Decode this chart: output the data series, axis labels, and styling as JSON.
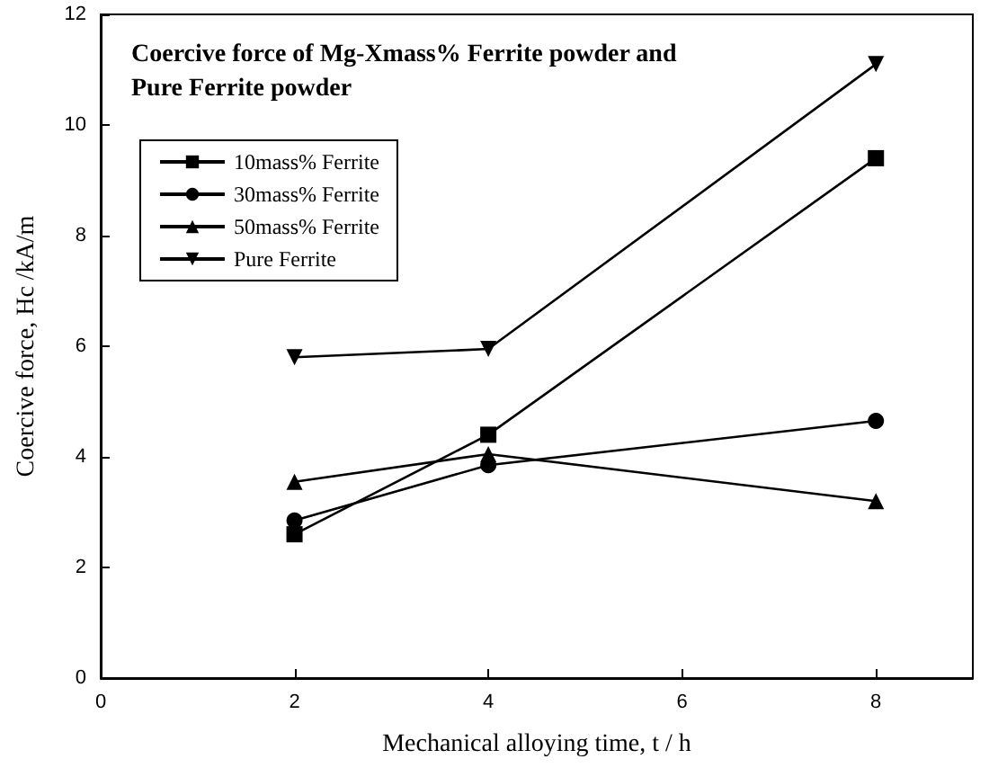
{
  "chart_data": {
    "type": "line",
    "title": "Coercive force of Mg-Xmass% Ferrite powder and Pure Ferrite powder",
    "xlabel": "Mechanical alloying time, t / h",
    "ylabel": "Coercive force, Hc /kA/m",
    "x": [
      2,
      4,
      8
    ],
    "series": [
      {
        "name": "10mass% Ferrite",
        "color": "#000000",
        "marker": "square",
        "values": [
          2.6,
          4.4,
          9.4
        ]
      },
      {
        "name": "30mass% Ferrite",
        "color": "#000000",
        "marker": "circle",
        "values": [
          2.85,
          3.85,
          4.65
        ]
      },
      {
        "name": "50mass% Ferrite",
        "color": "#000000",
        "marker": "triangle",
        "values": [
          3.55,
          4.05,
          3.2
        ]
      },
      {
        "name": "Pure Ferrite",
        "color": "#000000",
        "marker": "triangle-down",
        "values": [
          5.8,
          5.95,
          11.1
        ]
      }
    ],
    "xlim": [
      0,
      9
    ],
    "xticks": [
      0,
      2,
      4,
      6,
      8
    ],
    "ylim": [
      0,
      12
    ],
    "yticks": [
      0,
      2,
      4,
      6,
      8,
      10,
      12
    ],
    "grid": false,
    "legend": "top left",
    "line_style": "solid"
  }
}
